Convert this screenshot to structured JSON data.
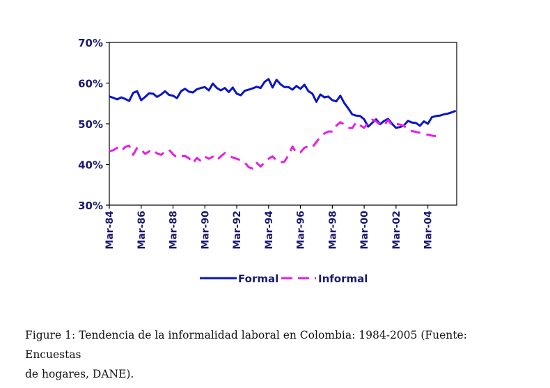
{
  "chart_data": {
    "type": "line",
    "title": "",
    "xlabel": "",
    "ylabel": "",
    "ylim": [
      30,
      70
    ],
    "yticks": [
      "30%",
      "40%",
      "50%",
      "60%",
      "70%"
    ],
    "ytick_values": [
      30,
      40,
      50,
      60,
      70
    ],
    "xticks": [
      "Mar-84",
      "Mar-86",
      "Mar-88",
      "Mar-90",
      "Mar-92",
      "Mar-94",
      "Mar-96",
      "Mar-98",
      "Mar-00",
      "Mar-02",
      "Mar-04"
    ],
    "x_start": "Mar-84",
    "x_frequency": "quarterly",
    "grid": false,
    "legend_position": "bottom",
    "series": [
      {
        "name": "Formal",
        "color": "#0a14c8",
        "style": "solid",
        "values": [
          56.7,
          56.4,
          56.0,
          56.5,
          56.1,
          55.6,
          57.6,
          58.0,
          55.8,
          56.6,
          57.5,
          57.4,
          56.6,
          57.2,
          58.0,
          57.1,
          56.9,
          56.3,
          58.0,
          58.6,
          57.9,
          57.7,
          58.5,
          58.8,
          59.0,
          58.2,
          59.9,
          58.8,
          58.2,
          58.8,
          57.8,
          58.9,
          57.4,
          57.0,
          58.1,
          58.4,
          58.7,
          59.1,
          58.8,
          60.3,
          61.0,
          58.9,
          60.8,
          59.7,
          59.0,
          59.0,
          58.4,
          59.3,
          58.6,
          59.6,
          58.0,
          57.4,
          55.4,
          57.2,
          56.5,
          56.7,
          55.8,
          55.5,
          56.9,
          55.1,
          53.8,
          52.3,
          52.0,
          51.9,
          51.1,
          49.3,
          50.2,
          51.1,
          49.9,
          50.7,
          51.2,
          50.0,
          49.0,
          49.2,
          49.6,
          50.7,
          50.3,
          50.2,
          49.5,
          50.6,
          50.0,
          51.6,
          51.9,
          52.0,
          52.3,
          52.5,
          52.8,
          53.2
        ]
      },
      {
        "name": "Informal",
        "color": "#e61ee6",
        "style": "dashed",
        "values": [
          43.2,
          43.5,
          44.1,
          43.3,
          44.3,
          44.6,
          42.4,
          44.1,
          43.6,
          42.6,
          43.2,
          43.6,
          42.7,
          42.4,
          43.1,
          43.6,
          42.5,
          41.7,
          42.0,
          42.1,
          41.5,
          40.3,
          41.6,
          40.8,
          41.9,
          41.4,
          41.9,
          41.0,
          42.0,
          42.8,
          42.2,
          41.7,
          41.4,
          41.0,
          40.5,
          39.3,
          39.0,
          40.4,
          39.5,
          40.5,
          41.4,
          42.0,
          41.0,
          40.5,
          40.7,
          42.3,
          44.4,
          42.8,
          43.0,
          44.1,
          44.5,
          44.2,
          45.5,
          46.8,
          47.6,
          48.1,
          48.1,
          49.5,
          50.4,
          49.8,
          49.0,
          48.9,
          50.4,
          49.6,
          49.0,
          50.3,
          51.0,
          50.6,
          49.8,
          49.6,
          50.9,
          49.7,
          50.0,
          49.8,
          49.5,
          48.5,
          48.2,
          48.0,
          47.8,
          47.5,
          47.3,
          47.1,
          47.0
        ]
      }
    ]
  },
  "caption": {
    "line1": "Figure 1:  Tendencia de la informalidad laboral en Colombia: 1984-2005 (Fuente:  Encuestas",
    "line2": "de hogares, DANE)."
  }
}
